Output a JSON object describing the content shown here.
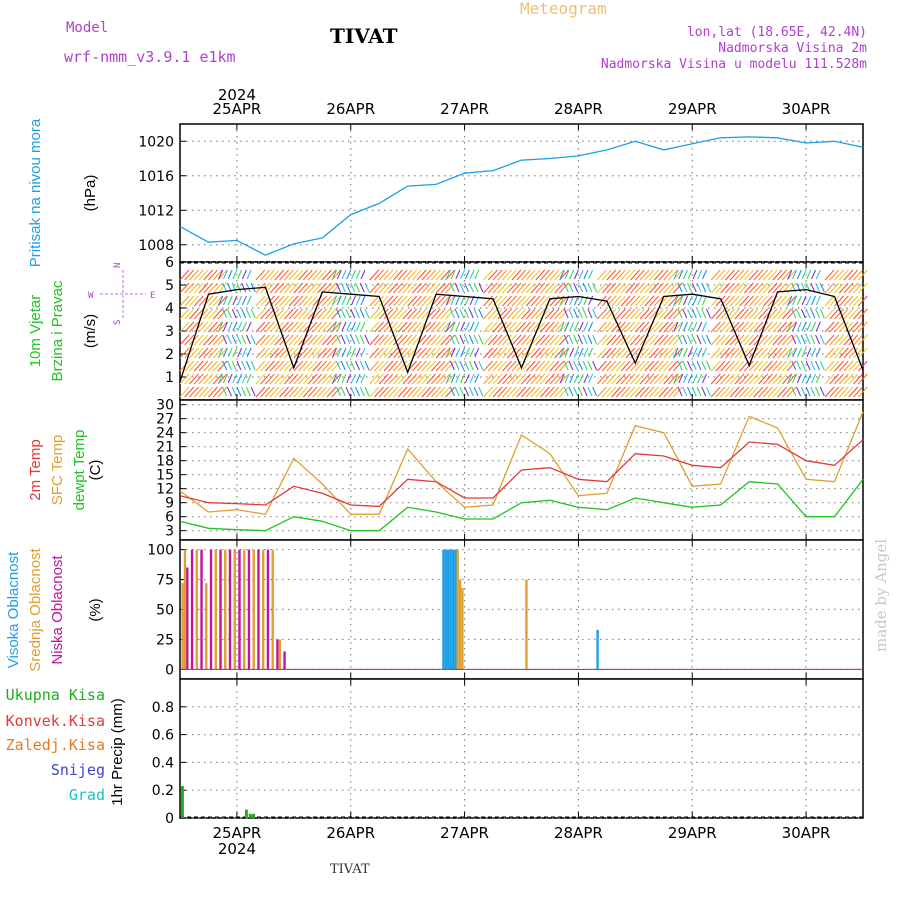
{
  "header": {
    "model_label": "Model",
    "model_name": "wrf-nmm_v3.9.1 e1km",
    "title": "TIVAT",
    "product": "Meteogram",
    "coords": "lon,lat (18.65E, 42.4N)",
    "elevation": "Nadmorska Visina 2m",
    "model_elevation": "Nadmorska Visina u modelu 111.528m"
  },
  "footer": {
    "title": "TIVAT",
    "watermark": "made by Angel"
  },
  "colors": {
    "pressure": "#1ea0e6",
    "temp2m": "#e23a3a",
    "sfc_temp": "#e0a030",
    "dewpoint": "#22c422",
    "high_cloud": "#1ea0e6",
    "mid_cloud": "#e0a030",
    "low_cloud": "#c0149c",
    "total_precip": "#22aa22",
    "conv_precip": "#e23a3a",
    "freezing": "#e87820",
    "snow": "#4040d0",
    "hail": "#20c0c0",
    "model_label": "#b040d0",
    "product": "#f0c070"
  },
  "chart_data": [
    {
      "type": "line",
      "title": "",
      "ylabel": [
        "Pritisak na nivou mora",
        "(hPa)"
      ],
      "ylim": [
        1006,
        1022
      ],
      "yticks": [
        1008,
        1012,
        1016,
        1020
      ],
      "grid": true,
      "x_top_year": "2024",
      "x_ticks": [
        "25APR",
        "26APR",
        "27APR",
        "28APR",
        "29APR",
        "30APR"
      ],
      "x_hours": [
        0,
        6,
        12,
        18,
        24,
        30,
        36,
        42,
        48,
        54,
        60,
        66,
        72,
        78,
        84,
        90,
        96,
        102,
        108,
        114,
        120,
        126,
        132,
        138,
        144
      ],
      "series": [
        {
          "name": "",
          "values": [
            1010.1,
            1008.3,
            1008.5,
            1006.8,
            1008.1,
            1008.8,
            1011.5,
            1012.8,
            1014.8,
            1015.0,
            1016.3,
            1016.6,
            1017.8,
            1018.0,
            1018.3,
            1019.0,
            1020.0,
            1019.0,
            1019.7,
            1020.4,
            1020.5,
            1020.4,
            1019.8,
            1020.0,
            1019.3
          ]
        }
      ]
    },
    {
      "type": "line",
      "title": "",
      "ylabel": [
        "10m Vjetar",
        "Brzina i Pravac",
        "(m/s)"
      ],
      "compass": [
        "N",
        "W",
        "E",
        "S"
      ],
      "ylim": [
        0,
        6
      ],
      "yticks": [
        1,
        2,
        3,
        4,
        5,
        6
      ],
      "grid": true,
      "x_hours": [
        0,
        6,
        12,
        18,
        24,
        30,
        36,
        42,
        48,
        54,
        60,
        66,
        72,
        78,
        84,
        90,
        96,
        102,
        108,
        114,
        120,
        126,
        132,
        138,
        144
      ],
      "series": [
        {
          "name": "",
          "values": [
            0.8,
            4.6,
            4.8,
            4.9,
            1.4,
            4.7,
            4.6,
            4.5,
            1.2,
            4.6,
            4.5,
            4.4,
            1.4,
            4.4,
            4.5,
            4.3,
            1.6,
            4.5,
            4.6,
            4.4,
            1.5,
            4.7,
            4.8,
            4.5,
            1.3
          ]
        }
      ]
    },
    {
      "type": "line",
      "title": "",
      "ylabel": [
        "2m Temp",
        "SFC Temp",
        "dewpt Temp",
        "(C)"
      ],
      "ylim": [
        1,
        31
      ],
      "yticks": [
        3,
        6,
        9,
        12,
        15,
        18,
        21,
        24,
        27,
        30
      ],
      "grid": true,
      "x_hours": [
        0,
        6,
        12,
        18,
        24,
        30,
        36,
        42,
        48,
        54,
        60,
        66,
        72,
        78,
        84,
        90,
        96,
        102,
        108,
        114,
        120,
        126,
        132,
        138,
        144
      ],
      "series": [
        {
          "name": "2m Temp",
          "values": [
            10.5,
            9.0,
            8.8,
            8.5,
            12.5,
            11.0,
            8.5,
            8.2,
            14.0,
            13.5,
            10.0,
            10.0,
            16.0,
            16.5,
            14.0,
            13.5,
            19.5,
            19.0,
            17.0,
            16.5,
            22.0,
            21.5,
            18.0,
            17.0,
            22.5
          ]
        },
        {
          "name": "SFC Temp",
          "values": [
            11.5,
            7.0,
            7.5,
            6.5,
            18.5,
            13.0,
            6.5,
            6.5,
            20.5,
            13.5,
            8.0,
            8.5,
            23.5,
            19.5,
            10.5,
            11.0,
            25.5,
            24.0,
            12.5,
            13.0,
            27.5,
            25.0,
            14.0,
            13.5,
            28.5
          ]
        },
        {
          "name": "dewpt Temp",
          "values": [
            5.0,
            3.5,
            3.2,
            3.0,
            6.0,
            5.0,
            3.0,
            3.0,
            8.0,
            7.0,
            5.5,
            5.5,
            9.0,
            9.5,
            8.0,
            7.5,
            10.0,
            9.0,
            8.0,
            8.5,
            13.5,
            13.0,
            6.0,
            6.0,
            14.0
          ]
        }
      ]
    },
    {
      "type": "bar",
      "title": "",
      "ylabel": [
        "Visoka Oblacnost",
        "Srednja Oblacnost",
        "Niska Oblacnost",
        "(%)"
      ],
      "ylim": [
        -8,
        108
      ],
      "yticks": [
        0,
        25,
        50,
        75,
        100
      ],
      "grid": true,
      "series": [
        {
          "name": "Niska Oblacnost",
          "points": [
            [
              1.5,
              85
            ],
            [
              2.5,
              100
            ],
            [
              4.5,
              100
            ],
            [
              6.5,
              100
            ],
            [
              8.5,
              100
            ],
            [
              10.5,
              100
            ],
            [
              12.5,
              100
            ],
            [
              14.5,
              100
            ],
            [
              16.5,
              100
            ],
            [
              18.5,
              100
            ],
            [
              20.5,
              25
            ],
            [
              22.0,
              15
            ]
          ]
        },
        {
          "name": "Srednja Oblacnost",
          "points": [
            [
              0.5,
              72
            ],
            [
              1.0,
              100
            ],
            [
              3.5,
              100
            ],
            [
              5.5,
              72
            ],
            [
              7.5,
              100
            ],
            [
              9.5,
              100
            ],
            [
              11.5,
              100
            ],
            [
              13.5,
              100
            ],
            [
              15.5,
              100
            ],
            [
              17.5,
              100
            ],
            [
              19.5,
              100
            ],
            [
              21.0,
              25
            ],
            [
              58.5,
              100
            ],
            [
              59.0,
              75
            ],
            [
              59.5,
              68
            ],
            [
              73.0,
              75
            ]
          ]
        },
        {
          "name": "Visoka Oblacnost",
          "points": [
            [
              55.5,
              100
            ],
            [
              56.0,
              100
            ],
            [
              56.5,
              100
            ],
            [
              57.0,
              100
            ],
            [
              57.5,
              100
            ],
            [
              58.0,
              100
            ],
            [
              88.0,
              33
            ]
          ]
        }
      ]
    },
    {
      "type": "bar",
      "title": "",
      "ylabel": [
        "1hr Precip (mm)"
      ],
      "legend": [
        "Ukupna Kisa",
        "Konvek.Kisa",
        "Zaledj.Kisa",
        "Snijeg",
        "Grad"
      ],
      "ylim": [
        0,
        1.0
      ],
      "yticks": [
        0,
        0.2,
        0.4,
        0.6,
        0.8
      ],
      "grid": true,
      "x_ticks": [
        "25APR",
        "26APR",
        "27APR",
        "28APR",
        "29APR",
        "30APR"
      ],
      "x_bottom_year": "2024",
      "series": [
        {
          "name": "Ukupna Kisa",
          "points": [
            [
              0.5,
              0.23
            ],
            [
              14.0,
              0.06
            ],
            [
              14.8,
              0.03
            ],
            [
              15.5,
              0.03
            ]
          ]
        }
      ]
    }
  ]
}
